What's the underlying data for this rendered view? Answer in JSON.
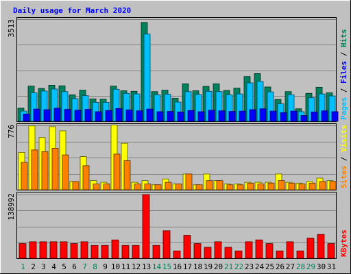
{
  "chart_data": [
    {
      "type": "bar",
      "title": "Daily usage for March 2020",
      "categories": [
        "1",
        "2",
        "3",
        "4",
        "5",
        "6",
        "7",
        "8",
        "9",
        "10",
        "11",
        "12",
        "13",
        "14",
        "15",
        "16",
        "17",
        "18",
        "19",
        "20",
        "21",
        "22",
        "23",
        "24",
        "25",
        "26",
        "27",
        "28",
        "29",
        "30",
        "31"
      ],
      "weekend_days": [
        "1",
        "7",
        "8",
        "14",
        "15",
        "21",
        "22",
        "28",
        "29"
      ],
      "ylim": [
        0,
        3513
      ],
      "ytick_label": "3513",
      "legend": [
        "Pages",
        "Files",
        "Hits"
      ],
      "series": [
        {
          "name": "Hits",
          "color": "#00805c",
          "values": [
            450,
            1210,
            1130,
            1240,
            1220,
            910,
            1070,
            770,
            760,
            1210,
            1050,
            1030,
            3400,
            1020,
            1070,
            790,
            1290,
            1050,
            1200,
            1290,
            1060,
            1140,
            1540,
            1640,
            1180,
            750,
            1020,
            430,
            960,
            1170,
            980
          ]
        },
        {
          "name": "Files",
          "color": "#00c0ff",
          "values": [
            350,
            980,
            1040,
            1110,
            1020,
            780,
            880,
            650,
            650,
            1100,
            960,
            940,
            3000,
            910,
            930,
            660,
            1020,
            920,
            1030,
            1020,
            910,
            940,
            1320,
            1370,
            1010,
            600,
            910,
            330,
            810,
            940,
            870
          ]
        },
        {
          "name": "Pages",
          "color": "#0000ff",
          "values": [
            250,
            420,
            400,
            450,
            410,
            380,
            410,
            330,
            370,
            440,
            390,
            360,
            420,
            330,
            340,
            320,
            370,
            330,
            380,
            360,
            340,
            350,
            400,
            430,
            350,
            300,
            350,
            200,
            320,
            360,
            330
          ]
        }
      ]
    },
    {
      "type": "bar",
      "categories": [
        "1",
        "2",
        "3",
        "4",
        "5",
        "6",
        "7",
        "8",
        "9",
        "10",
        "11",
        "12",
        "13",
        "14",
        "15",
        "16",
        "17",
        "18",
        "19",
        "20",
        "21",
        "22",
        "23",
        "24",
        "25",
        "26",
        "27",
        "28",
        "29",
        "30",
        "31"
      ],
      "ylim": [
        0,
        776
      ],
      "ytick_label": "776",
      "legend": [
        "Sites",
        "Visits"
      ],
      "series": [
        {
          "name": "Visits",
          "color": "#ffff00",
          "values": [
            450,
            770,
            630,
            760,
            710,
            100,
            400,
            110,
            90,
            780,
            560,
            90,
            110,
            60,
            130,
            70,
            190,
            60,
            190,
            110,
            70,
            70,
            90,
            90,
            90,
            190,
            90,
            80,
            100,
            140,
            110
          ]
        },
        {
          "name": "Sites",
          "color": "#ff8000",
          "values": [
            330,
            480,
            460,
            500,
            420,
            100,
            290,
            70,
            70,
            430,
            350,
            70,
            70,
            60,
            90,
            70,
            190,
            60,
            110,
            110,
            60,
            60,
            80,
            70,
            80,
            110,
            80,
            70,
            80,
            100,
            100
          ]
        }
      ]
    },
    {
      "type": "bar",
      "categories": [
        "1",
        "2",
        "3",
        "4",
        "5",
        "6",
        "7",
        "8",
        "9",
        "10",
        "11",
        "12",
        "13",
        "14",
        "15",
        "16",
        "17",
        "18",
        "19",
        "20",
        "21",
        "22",
        "23",
        "24",
        "25",
        "26",
        "27",
        "28",
        "29",
        "30",
        "31"
      ],
      "ylim": [
        0,
        138992
      ],
      "ytick_label": "138992",
      "legend": [
        "KBytes"
      ],
      "series": [
        {
          "name": "KBytes",
          "color": "#ff0000",
          "values": [
            32000,
            36000,
            36000,
            36000,
            36000,
            32000,
            36000,
            28000,
            28000,
            40000,
            28000,
            28000,
            138992,
            28000,
            60000,
            16000,
            50000,
            32000,
            24000,
            36000,
            24000,
            16000,
            36000,
            40000,
            32000,
            16000,
            36000,
            16000,
            44000,
            52000,
            32000
          ]
        }
      ]
    }
  ]
}
